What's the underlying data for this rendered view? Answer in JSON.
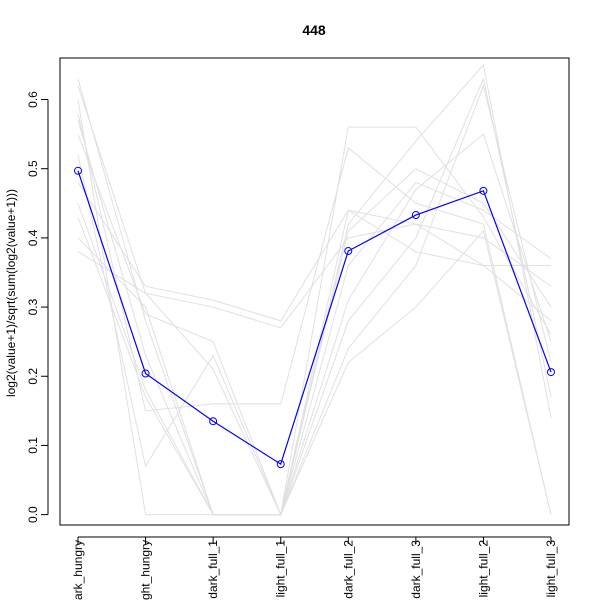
{
  "chart_data": {
    "type": "line",
    "title": "448",
    "xlabel": "",
    "ylabel": "log2(value+1)/sqrt(sum(log2(value+1)))",
    "categories": [
      "dark_hungry",
      "light_hungry",
      "dark_full_1",
      "light_full_1",
      "dark_full_2",
      "dark_full_3",
      "light_full_2",
      "light_full_3"
    ],
    "tick_labels": [
      "ark_hungry",
      "ght_hungry",
      "dark_full_1",
      "light_full_1",
      "dark_full_2",
      "dark_full_3",
      "light_full_2",
      "light_full_3"
    ],
    "yticks": [
      0.0,
      0.1,
      0.2,
      0.3,
      0.4,
      0.5,
      0.6
    ],
    "ylim": [
      -0.015,
      0.66
    ],
    "grid": false,
    "colors": {
      "highlight": "#0000ff",
      "background_series": "#e0e0e0"
    },
    "highlight_series": {
      "values": [
        0.497,
        0.204,
        0.135,
        0.073,
        0.381,
        0.433,
        0.468,
        0.206
      ]
    },
    "background_series": [
      {
        "values": [
          0.62,
          0.32,
          0.21,
          0.0,
          0.56,
          0.56,
          0.43,
          0.26
        ]
      },
      {
        "values": [
          0.58,
          0.15,
          0.16,
          0.16,
          0.53,
          0.45,
          0.42,
          0.0
        ]
      },
      {
        "values": [
          0.55,
          0.29,
          0.25,
          0.0,
          0.42,
          0.54,
          0.65,
          0.14
        ]
      },
      {
        "values": [
          0.48,
          0.33,
          0.31,
          0.28,
          0.44,
          0.38,
          0.36,
          0.28
        ]
      },
      {
        "values": [
          0.4,
          0.3,
          0.0,
          0.0,
          0.36,
          0.48,
          0.44,
          0.37
        ]
      },
      {
        "values": [
          0.52,
          0.07,
          0.23,
          0.0,
          0.28,
          0.4,
          0.63,
          0.17
        ]
      },
      {
        "values": [
          0.38,
          0.32,
          0.3,
          0.27,
          0.4,
          0.42,
          0.4,
          0.33
        ]
      },
      {
        "values": [
          0.6,
          0.0,
          0.0,
          0.0,
          0.24,
          0.36,
          0.62,
          0.22
        ]
      },
      {
        "values": [
          0.45,
          0.18,
          0.0,
          0.0,
          0.41,
          0.5,
          0.45,
          0.3
        ]
      },
      {
        "values": [
          0.57,
          0.23,
          0.0,
          0.0,
          0.44,
          0.42,
          0.36,
          0.36
        ]
      },
      {
        "values": [
          0.63,
          0.28,
          0.0,
          0.0,
          0.31,
          0.47,
          0.55,
          0.25
        ]
      },
      {
        "values": [
          0.43,
          0.17,
          0.0,
          0.0,
          0.22,
          0.3,
          0.41,
          0.0
        ]
      }
    ]
  }
}
